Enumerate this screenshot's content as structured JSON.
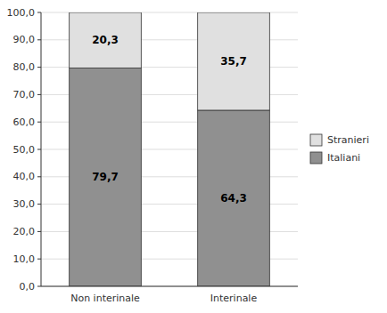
{
  "chart_data": {
    "type": "bar",
    "stacked": true,
    "categories": [
      "Non interinale",
      "Interinale"
    ],
    "series": [
      {
        "name": "Italiani",
        "color": "#909090",
        "values": [
          79.7,
          64.3
        ],
        "value_labels": [
          "79,7",
          "64,3"
        ]
      },
      {
        "name": "Stranieri",
        "color": "#e0e0e0",
        "values": [
          20.3,
          35.7
        ],
        "value_labels": [
          "20,3",
          "35,7"
        ]
      }
    ],
    "ylim": [
      0,
      100
    ],
    "yticks": [
      {
        "value": 0.0,
        "label": "0,0"
      },
      {
        "value": 10.0,
        "label": "10,0"
      },
      {
        "value": 20.0,
        "label": "20,0"
      },
      {
        "value": 30.0,
        "label": "30,0"
      },
      {
        "value": 40.0,
        "label": "40,0"
      },
      {
        "value": 50.0,
        "label": "50,0"
      },
      {
        "value": 60.0,
        "label": "60,0"
      },
      {
        "value": 70.0,
        "label": "70,0"
      },
      {
        "value": 80.0,
        "label": "80,0"
      },
      {
        "value": 90.0,
        "label": "90,0"
      },
      {
        "value": 100.0,
        "label": "100,0"
      }
    ],
    "grid": true,
    "data_labels": true,
    "legend": "right"
  }
}
